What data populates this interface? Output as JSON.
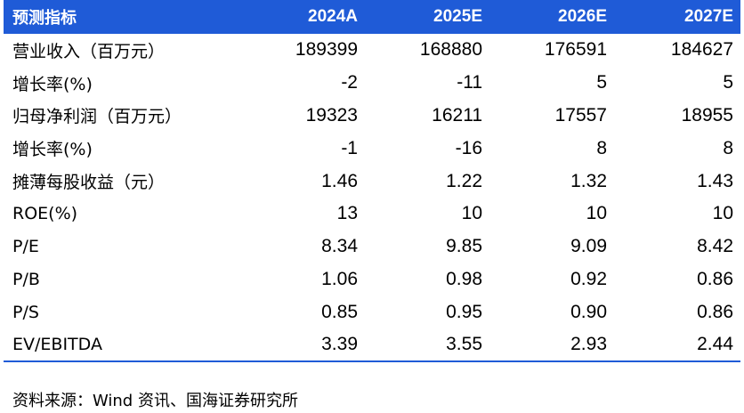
{
  "table": {
    "header": {
      "label": "预测指标",
      "years": [
        "2024A",
        "2025E",
        "2026E",
        "2027E"
      ]
    },
    "rows": [
      {
        "label": "营业收入（百万元）",
        "values": [
          "189399",
          "168880",
          "176591",
          "184627"
        ]
      },
      {
        "label": "增长率(%)",
        "values": [
          "-2",
          "-11",
          "5",
          "5"
        ]
      },
      {
        "label": "归母净利润（百万元）",
        "values": [
          "19323",
          "16211",
          "17557",
          "18955"
        ]
      },
      {
        "label": "增长率(%)",
        "values": [
          "-1",
          "-16",
          "8",
          "8"
        ]
      },
      {
        "label": "摊薄每股收益（元）",
        "values": [
          "1.46",
          "1.22",
          "1.32",
          "1.43"
        ]
      },
      {
        "label": "ROE(%)",
        "values": [
          "13",
          "10",
          "10",
          "10"
        ]
      },
      {
        "label": "P/E",
        "values": [
          "8.34",
          "9.85",
          "9.09",
          "8.42"
        ]
      },
      {
        "label": "P/B",
        "values": [
          "1.06",
          "0.98",
          "0.92",
          "0.86"
        ]
      },
      {
        "label": "P/S",
        "values": [
          "0.85",
          "0.95",
          "0.90",
          "0.86"
        ]
      },
      {
        "label": "EV/EBITDA",
        "values": [
          "3.39",
          "3.55",
          "2.93",
          "2.44"
        ]
      }
    ]
  },
  "source": "资料来源：Wind 资讯、国海证券研究所",
  "colors": {
    "header_bg": "#1f5bd7",
    "header_text": "#ffffff"
  }
}
